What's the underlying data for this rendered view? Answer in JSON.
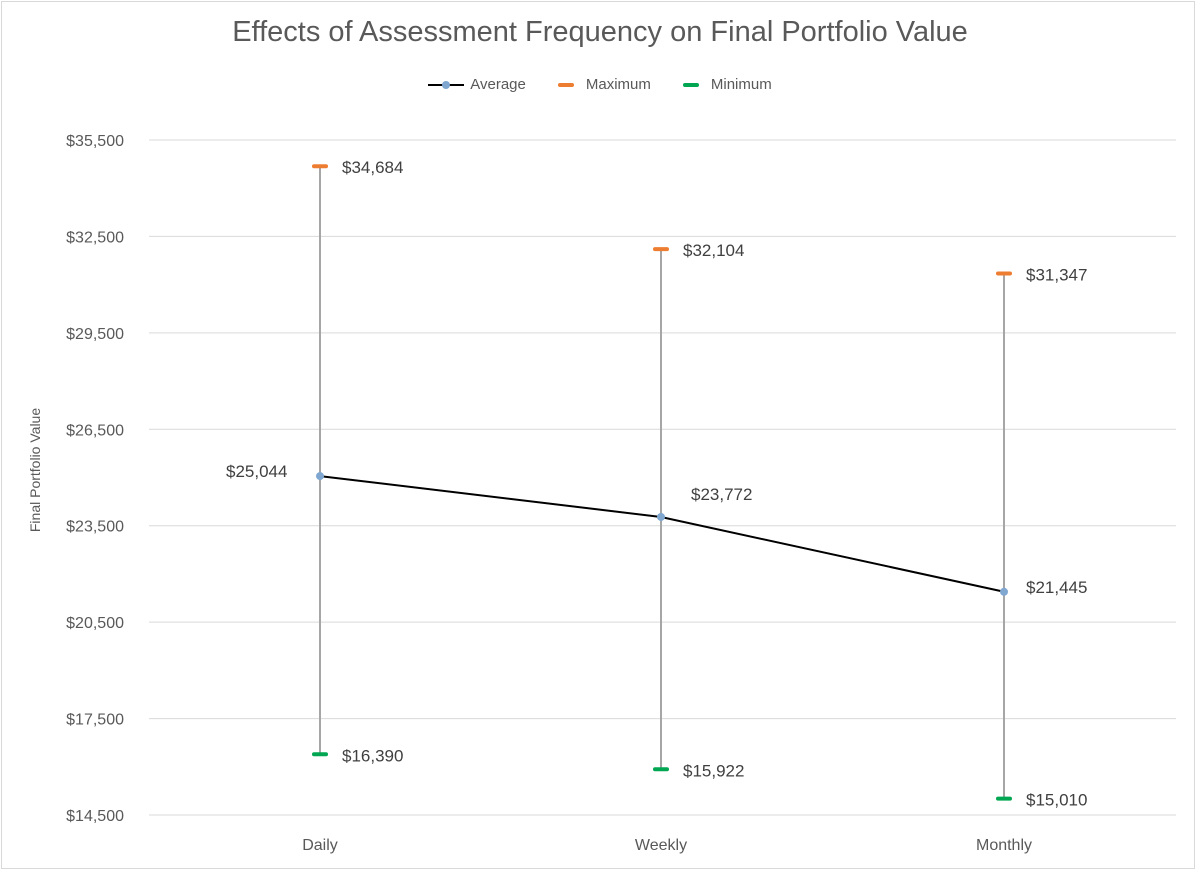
{
  "chart_data": {
    "type": "line",
    "title": "Effects of Assessment Frequency on Final Portfolio Value",
    "xlabel": "",
    "ylabel": "Final Portfolio Value",
    "categories": [
      "Daily",
      "Weekly",
      "Monthly"
    ],
    "ylim": [
      14500,
      35500
    ],
    "yticks": [
      14500,
      17500,
      20500,
      23500,
      26500,
      29500,
      32500,
      35500
    ],
    "ytick_labels": [
      "$14,500",
      "$17,500",
      "$20,500",
      "$23,500",
      "$26,500",
      "$29,500",
      "$32,500",
      "$35,500"
    ],
    "grid": true,
    "legend": "top",
    "series": [
      {
        "name": "Average",
        "values": [
          25044,
          23772,
          21445
        ],
        "labels": [
          "$25,044",
          "$23,772",
          "$21,445"
        ],
        "color": "#000000",
        "marker_color": "#7FA7D0"
      },
      {
        "name": "Maximum",
        "values": [
          34684,
          32104,
          31347
        ],
        "labels": [
          "$34,684",
          "$32,104",
          "$31,347"
        ],
        "color": "#ED7D31"
      },
      {
        "name": "Minimum",
        "values": [
          16390,
          15922,
          15010
        ],
        "labels": [
          "$16,390",
          "$15,922",
          "$15,010"
        ],
        "color": "#00A651"
      }
    ],
    "range_line_color": "#A6A6A6"
  }
}
